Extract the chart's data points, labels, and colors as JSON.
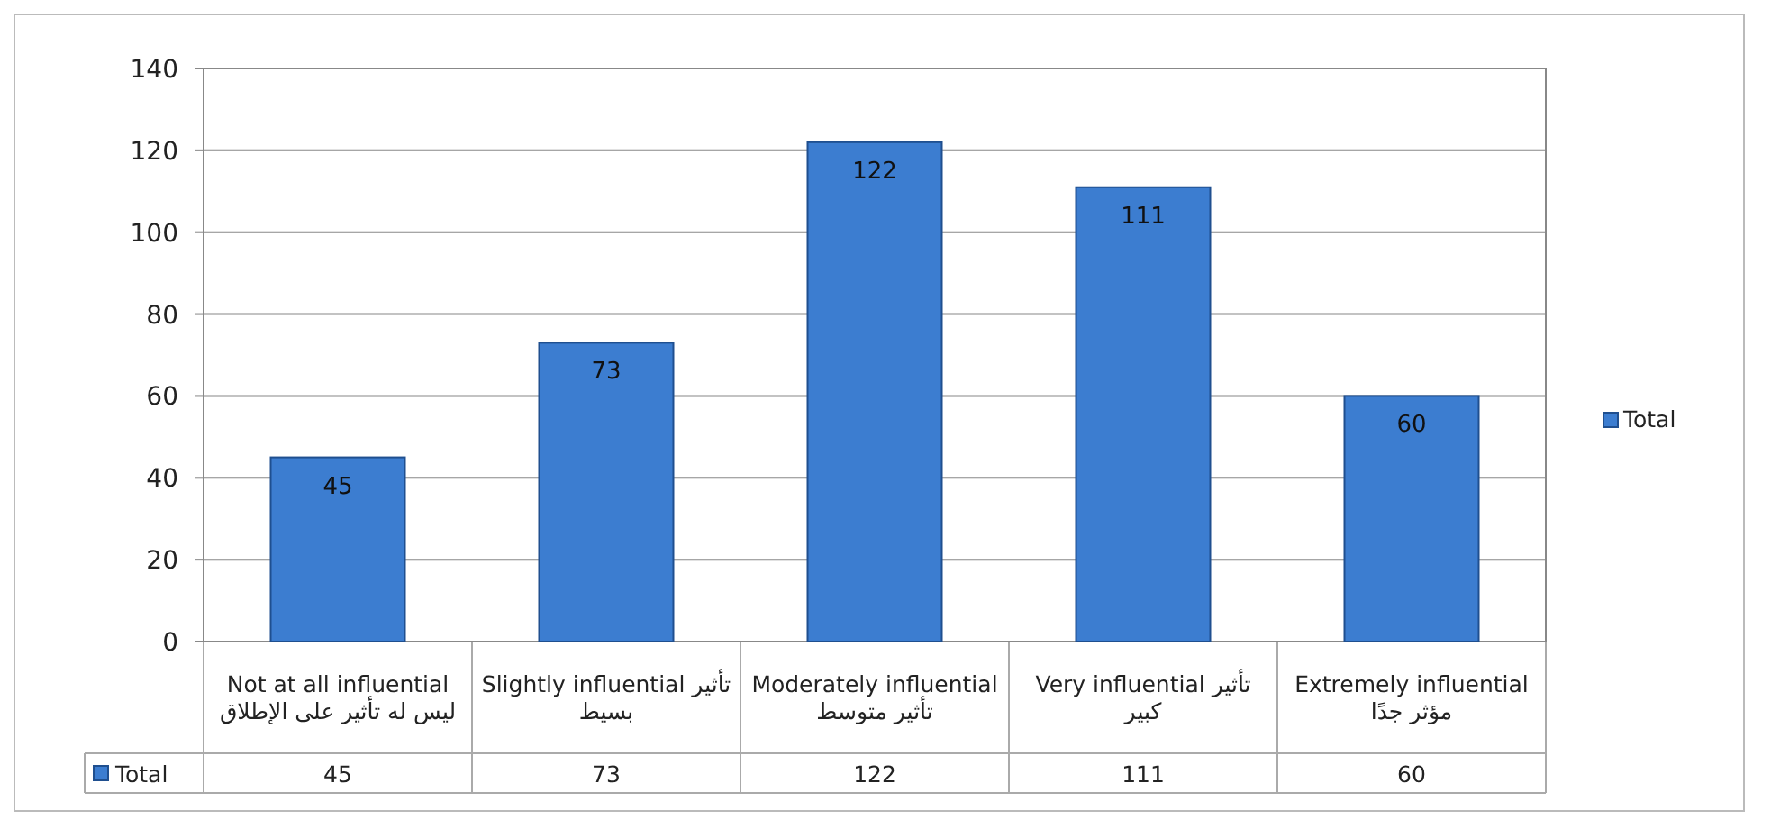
{
  "chart_data": {
    "type": "bar",
    "categories": [
      "Not at all influential لیس له تأثیر علی الإطلاق",
      "Slightly influential تأثیر بسیط",
      "Moderately influential تأثیر متوسط",
      "Very influential تأثیر کبیر",
      "Extremely influential مؤثر جدًا"
    ],
    "series": [
      {
        "name": "Total",
        "color": "#3c7dd0",
        "values": [
          45,
          73,
          122,
          111,
          60
        ],
        "value_labels": [
          "45",
          "73",
          "122",
          "111",
          "60"
        ]
      }
    ],
    "ylim": [
      0,
      140
    ],
    "yticks": [
      0,
      20,
      40,
      60,
      80,
      100,
      120,
      140
    ],
    "annotations": [
      "45",
      "73",
      "122",
      "111",
      "60"
    ],
    "grid": "y",
    "legend": "right"
  }
}
